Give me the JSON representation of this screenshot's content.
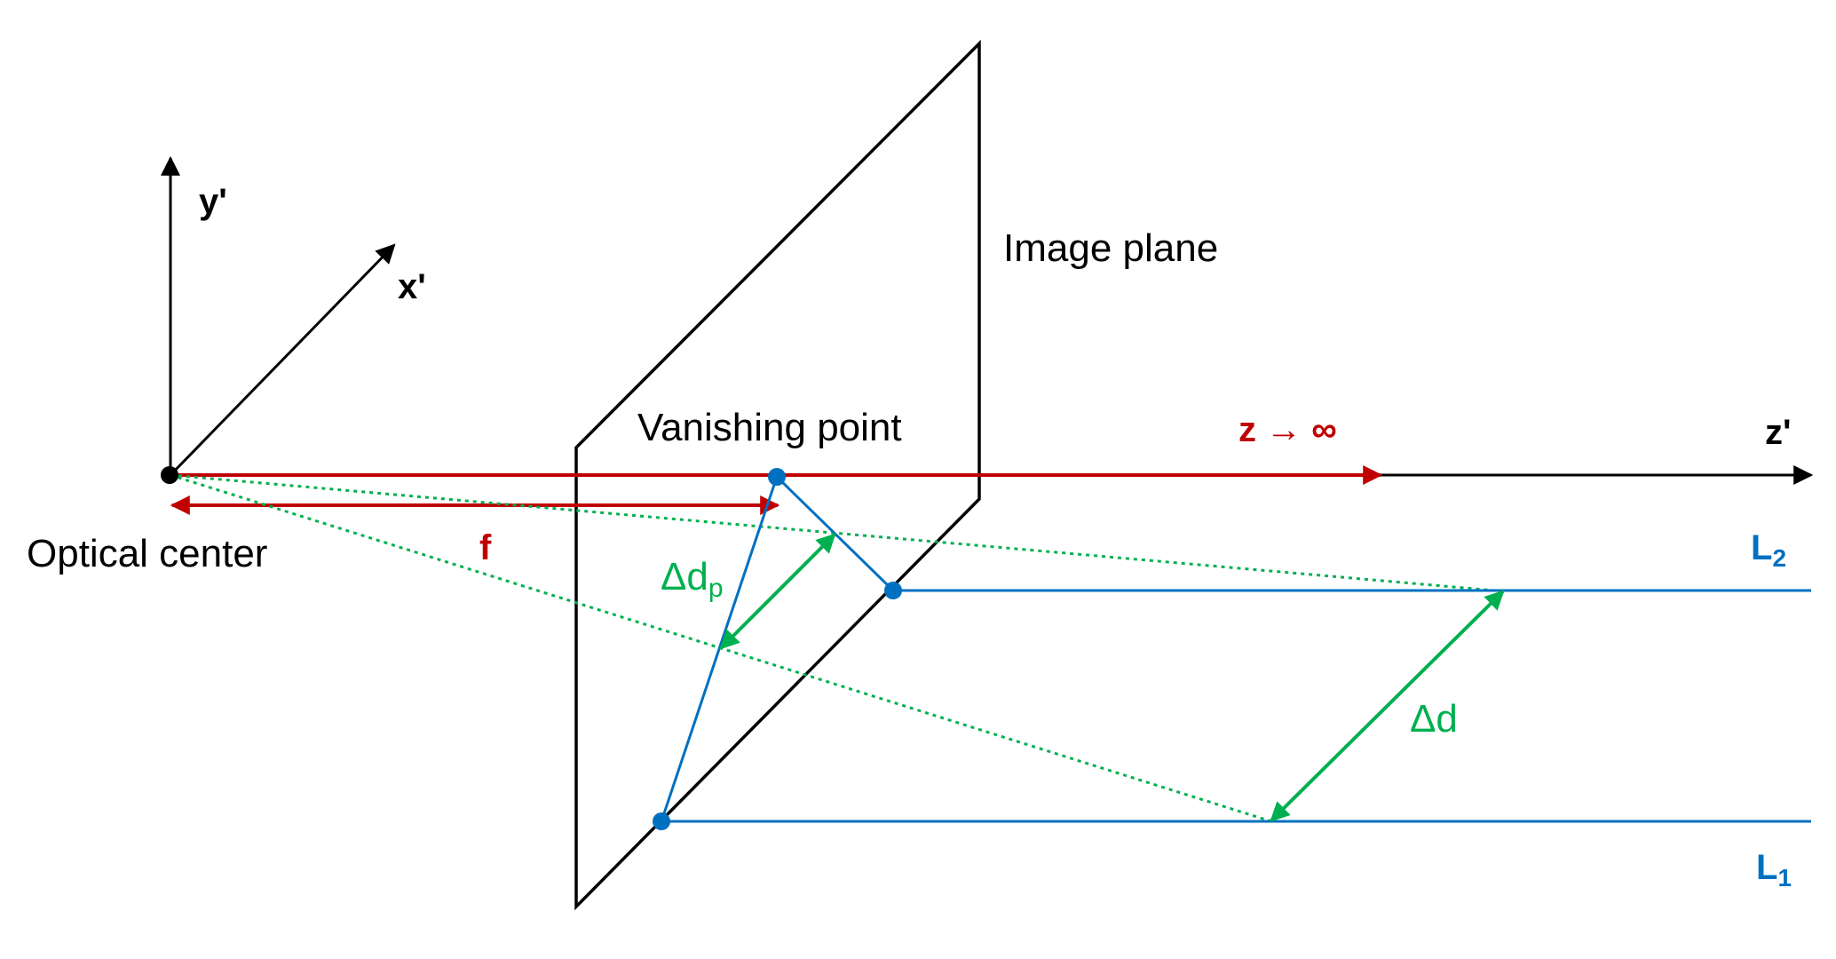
{
  "colors": {
    "black": "#000000",
    "red": "#c00000",
    "blue": "#0070c0",
    "green": "#00b050"
  },
  "labels": {
    "y_axis": "y'",
    "x_axis": "x'",
    "z_axis": "z'",
    "image_plane": "Image plane",
    "vanishing_point": "Vanishing point",
    "optical_center": "Optical center",
    "focal_length": "f",
    "z_limit": "z → ∞",
    "delta_dp_main": "Δd",
    "delta_dp_sub": "p",
    "delta_d": "Δd",
    "line2_main": "L",
    "line2_sub": "2",
    "line1_main": "L",
    "line1_sub": "1"
  }
}
